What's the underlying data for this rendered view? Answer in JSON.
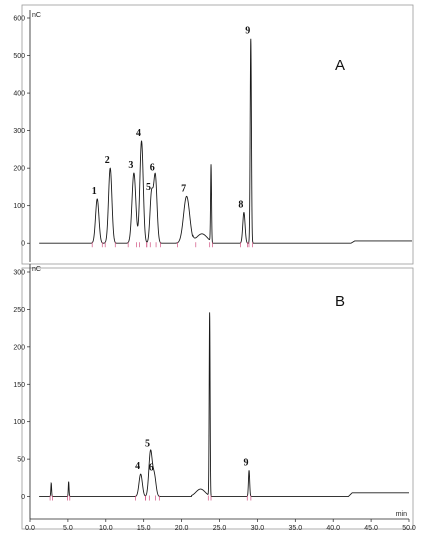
{
  "chart_data": [
    {
      "type": "line",
      "title": "A",
      "ylabel": "nC",
      "ylim": [
        -50,
        600
      ],
      "xlim": [
        0,
        50
      ],
      "yticks": [
        0,
        100,
        200,
        300,
        400,
        500,
        600
      ],
      "show_xticks": false,
      "x_unit": "",
      "baseline_step": {
        "from": 42,
        "to": 42.5,
        "delta": 6
      },
      "peaks": [
        {
          "label": "1",
          "x": 8.8,
          "y": 118,
          "w": 0.22
        },
        {
          "label": "2",
          "x": 10.5,
          "y": 200,
          "w": 0.22
        },
        {
          "label": "3",
          "x": 13.6,
          "y": 187,
          "w": 0.25
        },
        {
          "label": "4",
          "x": 14.6,
          "y": 272,
          "w": 0.22
        },
        {
          "label": "5",
          "x": 15.9,
          "y": 128,
          "w": 0.2
        },
        {
          "label": "6",
          "x": 16.4,
          "y": 180,
          "w": 0.22
        },
        {
          "label": "7",
          "x": 20.5,
          "y": 125,
          "w": 0.4
        },
        {
          "label": "",
          "x": 23.7,
          "y": 205,
          "w": 0.06
        },
        {
          "label": "8",
          "x": 28.0,
          "y": 82,
          "w": 0.15
        },
        {
          "label": "9",
          "x": 28.9,
          "y": 545,
          "w": 0.08
        }
      ],
      "hump": {
        "x": 22.5,
        "y": 25,
        "w": 0.7
      }
    },
    {
      "type": "line",
      "title": "B",
      "ylabel": "nC",
      "ylim": [
        -30,
        300
      ],
      "xlim": [
        0,
        50
      ],
      "yticks": [
        0,
        50,
        100,
        150,
        200,
        250,
        300
      ],
      "show_xticks": true,
      "xticks": [
        "0.0",
        "5.0",
        "10.0",
        "15.0",
        "20.0",
        "25.0",
        "30.0",
        "35.0",
        "40.0",
        "45.0",
        "50.0"
      ],
      "x_unit": "min",
      "baseline_step": {
        "from": 42,
        "to": 42.5,
        "delta": 5
      },
      "peaks": [
        {
          "label": "",
          "x": 2.8,
          "y": 18,
          "w": 0.05
        },
        {
          "label": "",
          "x": 5.1,
          "y": 20,
          "w": 0.05
        },
        {
          "label": "4",
          "x": 14.6,
          "y": 30,
          "w": 0.22
        },
        {
          "label": "5",
          "x": 15.9,
          "y": 60,
          "w": 0.22
        },
        {
          "label": "6",
          "x": 16.4,
          "y": 28,
          "w": 0.22
        },
        {
          "label": "",
          "x": 23.7,
          "y": 245,
          "w": 0.06
        },
        {
          "label": "9",
          "x": 28.9,
          "y": 35,
          "w": 0.08
        }
      ],
      "hump": {
        "x": 22.5,
        "y": 10,
        "w": 0.6
      }
    }
  ]
}
